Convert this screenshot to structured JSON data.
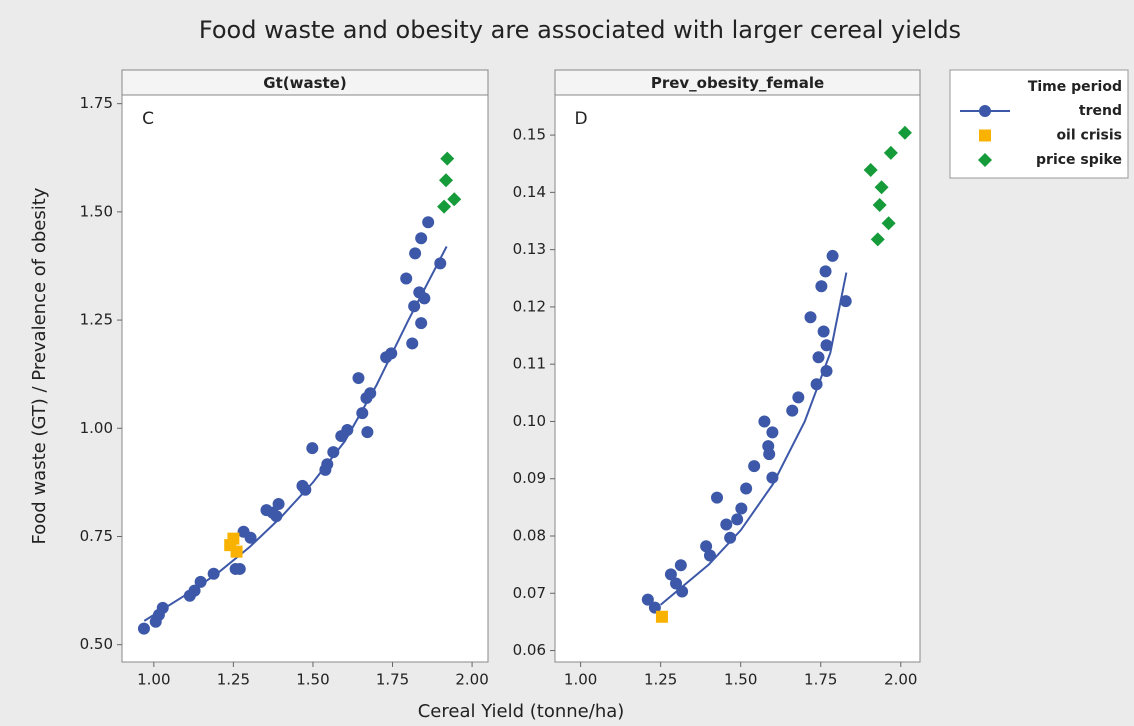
{
  "figure": {
    "title": "Food waste and obesity are associated with larger cereal yields",
    "xlabel": "Cereal Yield (tonne/ha)",
    "ylabel": "Food waste (GT) / Prevalence of obesity",
    "legend": {
      "title": "Time period",
      "corner": "outside-top-right"
    }
  },
  "chart_data": [
    {
      "type": "scatter",
      "panel_title": "Gt(waste)",
      "panel_label": "C",
      "xlim": [
        0.9,
        2.05
      ],
      "ylim": [
        0.46,
        1.77
      ],
      "xticks": [
        {
          "value": 1,
          "label": "1.00"
        },
        1.25,
        {
          "value": 1.5,
          "label": "1.50"
        },
        1.75,
        {
          "value": 2,
          "label": "2.00"
        }
      ],
      "yticks": [
        {
          "value": 0.5,
          "label": "0.50"
        },
        0.75,
        {
          "value": 1,
          "label": "1.00"
        },
        1.25,
        {
          "value": 1.5,
          "label": "1.50"
        },
        1.75
      ],
      "series": [
        {
          "name": "trend",
          "color": "#3d58a8",
          "marker": "circle",
          "x": [
            0.969,
            1.006,
            1.016,
            1.028,
            1.113,
            1.128,
            1.147,
            1.188,
            1.257,
            1.27,
            1.282,
            1.304,
            1.354,
            1.373,
            1.385,
            1.392,
            1.467,
            1.476,
            1.498,
            1.539,
            1.545,
            1.564,
            1.589,
            1.608,
            1.643,
            1.655,
            1.668,
            1.671,
            1.68,
            1.73,
            1.746,
            1.793,
            1.812,
            1.818,
            1.821,
            1.834,
            1.84,
            1.84,
            1.85,
            1.862,
            1.9
          ],
          "values": [
            0.537,
            0.553,
            0.569,
            0.585,
            0.613,
            0.625,
            0.645,
            0.664,
            0.675,
            0.675,
            0.761,
            0.747,
            0.811,
            0.805,
            0.797,
            0.825,
            0.867,
            0.858,
            0.954,
            0.904,
            0.917,
            0.945,
            0.982,
            0.996,
            1.116,
            1.035,
            1.07,
            0.991,
            1.081,
            1.164,
            1.173,
            1.346,
            1.196,
            1.282,
            1.404,
            1.314,
            1.243,
            1.439,
            1.3,
            1.476,
            1.381
          ],
          "fit": {
            "x": [
              0.97,
              1.1,
              1.2,
              1.3,
              1.4,
              1.5,
              1.6,
              1.7,
              1.8,
              1.92
            ],
            "values": [
              0.555,
              0.615,
              0.665,
              0.725,
              0.795,
              0.875,
              0.97,
              1.1,
              1.25,
              1.42
            ]
          }
        },
        {
          "name": "oil crisis",
          "color": "#f9b200",
          "marker": "square",
          "x": [
            1.24,
            1.25,
            1.26
          ],
          "values": [
            0.73,
            0.745,
            0.715
          ]
        },
        {
          "name": "price spike",
          "color": "#169b3a",
          "marker": "diamond",
          "x": [
            1.922,
            1.918,
            1.912,
            1.944
          ],
          "values": [
            1.623,
            1.573,
            1.512,
            1.529
          ]
        }
      ]
    },
    {
      "type": "scatter",
      "panel_title": "Prev_obesity_female",
      "panel_label": "D",
      "xlim": [
        0.92,
        2.06
      ],
      "ylim": [
        0.058,
        0.157
      ],
      "xticks": [
        {
          "value": 1,
          "label": "1.00"
        },
        1.25,
        {
          "value": 1.5,
          "label": "1.50"
        },
        1.75,
        {
          "value": 2,
          "label": "2.00"
        }
      ],
      "yticks": [
        0.06,
        0.07,
        0.08,
        0.09,
        {
          "value": 0.1,
          "label": "0.10"
        },
        0.11,
        0.12,
        0.13,
        0.14,
        0.15
      ],
      "series": [
        {
          "name": "trend",
          "color": "#3d58a8",
          "marker": "circle",
          "x": [
            1.21,
            1.232,
            1.282,
            1.298,
            1.313,
            1.317,
            1.392,
            1.404,
            1.426,
            1.455,
            1.467,
            1.489,
            1.502,
            1.517,
            1.542,
            1.574,
            1.586,
            1.589,
            1.599,
            1.599,
            1.661,
            1.68,
            1.718,
            1.737,
            1.743,
            1.752,
            1.759,
            1.765,
            1.768,
            1.768,
            1.787,
            1.828
          ],
          "values": [
            0.0689,
            0.0675,
            0.0733,
            0.0717,
            0.0749,
            0.0703,
            0.0782,
            0.0766,
            0.0867,
            0.082,
            0.0797,
            0.0829,
            0.0848,
            0.0883,
            0.0922,
            0.1,
            0.0957,
            0.0943,
            0.0981,
            0.0902,
            0.1019,
            0.1042,
            0.1182,
            0.1065,
            0.1112,
            0.1236,
            0.1157,
            0.1262,
            0.1133,
            0.1088,
            0.1289,
            0.121
          ],
          "fit": {
            "x": [
              1.25,
              1.4,
              1.5,
              1.6,
              1.7,
              1.78,
              1.83
            ],
            "values": [
              0.068,
              0.075,
              0.081,
              0.089,
              0.1,
              0.112,
              0.126
            ]
          }
        },
        {
          "name": "oil crisis",
          "color": "#f9b200",
          "marker": "square",
          "x": [
            1.254
          ],
          "values": [
            0.0659
          ]
        },
        {
          "name": "price spike",
          "color": "#169b3a",
          "marker": "diamond",
          "x": [
            1.906,
            1.94,
            1.934,
            1.962,
            1.928,
            1.969,
            2.013
          ],
          "values": [
            0.1439,
            0.1409,
            0.1378,
            0.1346,
            0.1318,
            0.1469,
            0.1504
          ]
        }
      ]
    }
  ]
}
